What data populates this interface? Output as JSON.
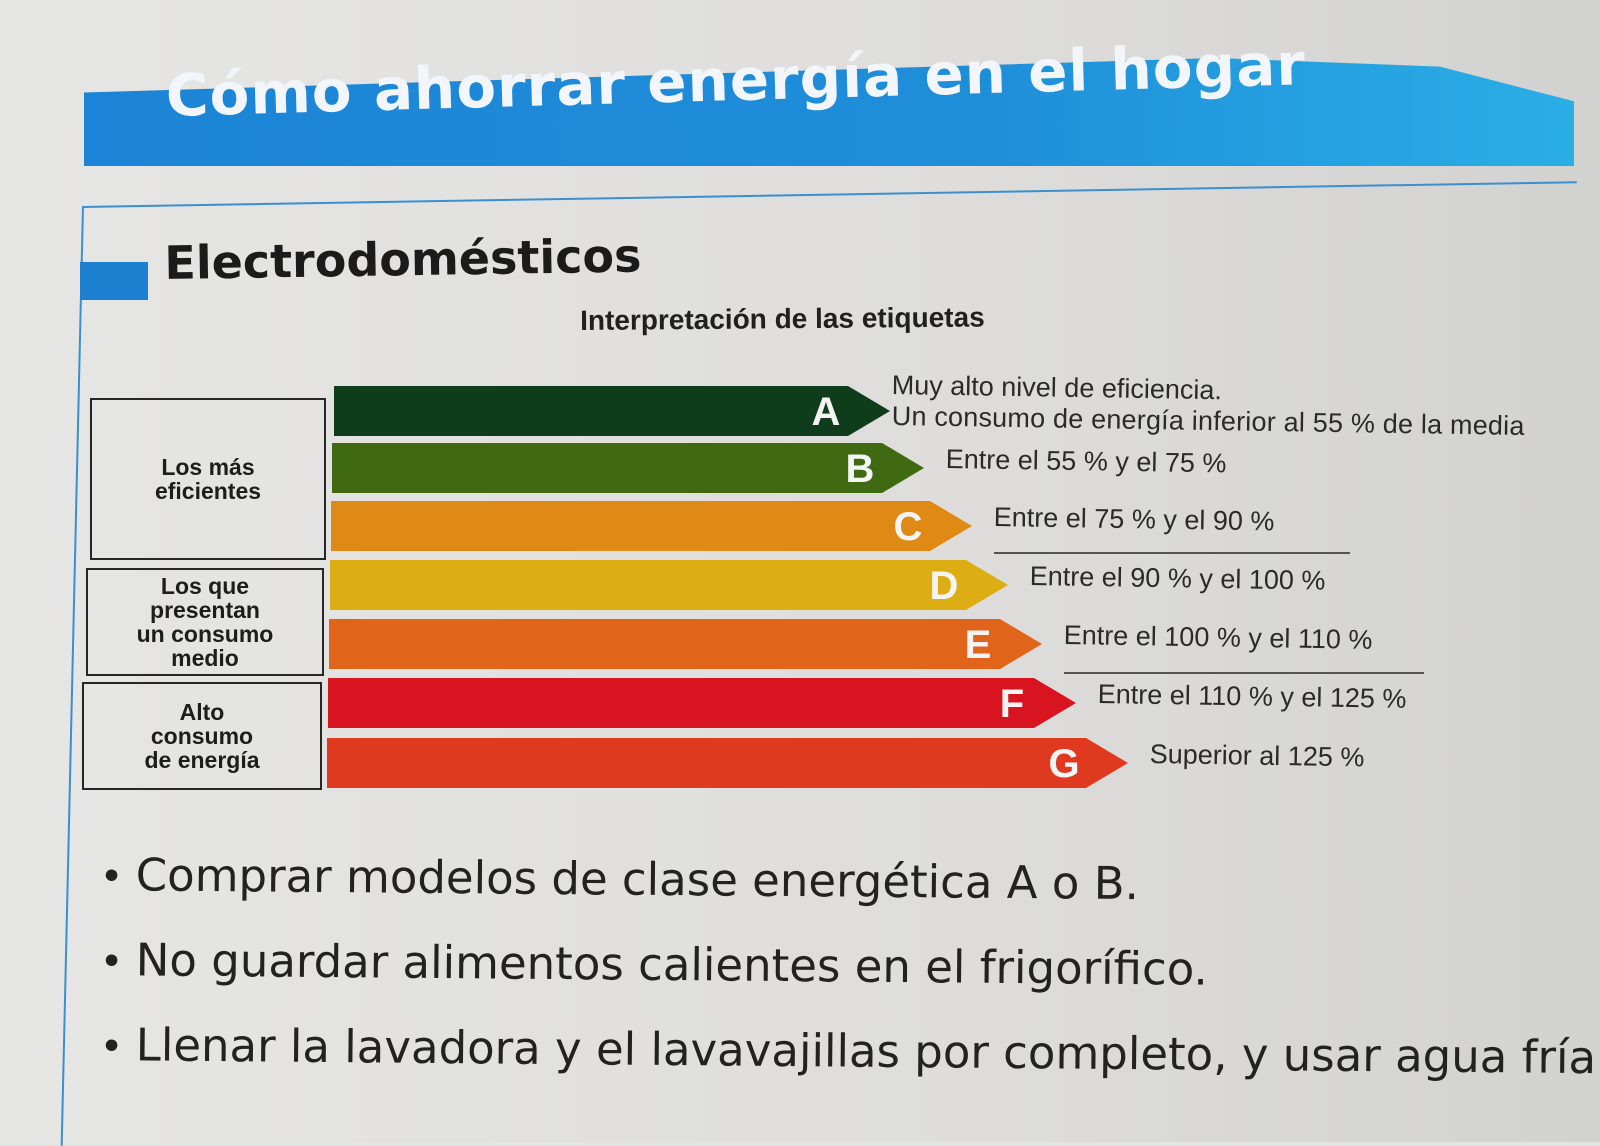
{
  "header": {
    "title": "Cómo ahorrar energía en el hogar",
    "banner_color": "#1f8ed9"
  },
  "section": {
    "title": "Electrodomésticos",
    "accent_color": "#1c7fd0"
  },
  "chart_data": {
    "type": "bar",
    "title": "Interpretación de las etiquetas",
    "groups": [
      {
        "label": "Los más\neficientes",
        "classes": [
          "A",
          "B",
          "C"
        ]
      },
      {
        "label": "Los que\npresentan\nun consumo\nmedio",
        "classes": [
          "D",
          "E"
        ]
      },
      {
        "label": "Alto\nconsumo\nde energía",
        "classes": [
          "F",
          "G"
        ]
      }
    ],
    "bands": [
      {
        "letter": "A",
        "color": "#0f3d1b",
        "description_lines": [
          "Muy alto nivel de eficiencia.",
          "Un consumo de energía inferior al 55 % de la media"
        ]
      },
      {
        "letter": "B",
        "color": "#3f6a12",
        "description_lines": [
          "Entre el 55 % y el 75 %"
        ]
      },
      {
        "letter": "C",
        "color": "#df8a14",
        "description_lines": [
          "Entre el 75 % y el 90 %"
        ]
      },
      {
        "letter": "D",
        "color": "#dcae14",
        "description_lines": [
          "Entre el 90 % y el 100 %"
        ]
      },
      {
        "letter": "E",
        "color": "#e0651a",
        "description_lines": [
          "Entre el 100 % y el 110 %"
        ]
      },
      {
        "letter": "F",
        "color": "#d71420",
        "description_lines": [
          "Entre el 110 % y el 125 %"
        ]
      },
      {
        "letter": "G",
        "color": "#df3a1f",
        "description_lines": [
          "Superior al 125 %"
        ]
      }
    ]
  },
  "tips": [
    "Comprar modelos de clase energética A o B.",
    "No guardar alimentos calientes en el frigorífico.",
    "Llenar la lavadora y el lavavajillas por completo, y usar agua fría"
  ]
}
